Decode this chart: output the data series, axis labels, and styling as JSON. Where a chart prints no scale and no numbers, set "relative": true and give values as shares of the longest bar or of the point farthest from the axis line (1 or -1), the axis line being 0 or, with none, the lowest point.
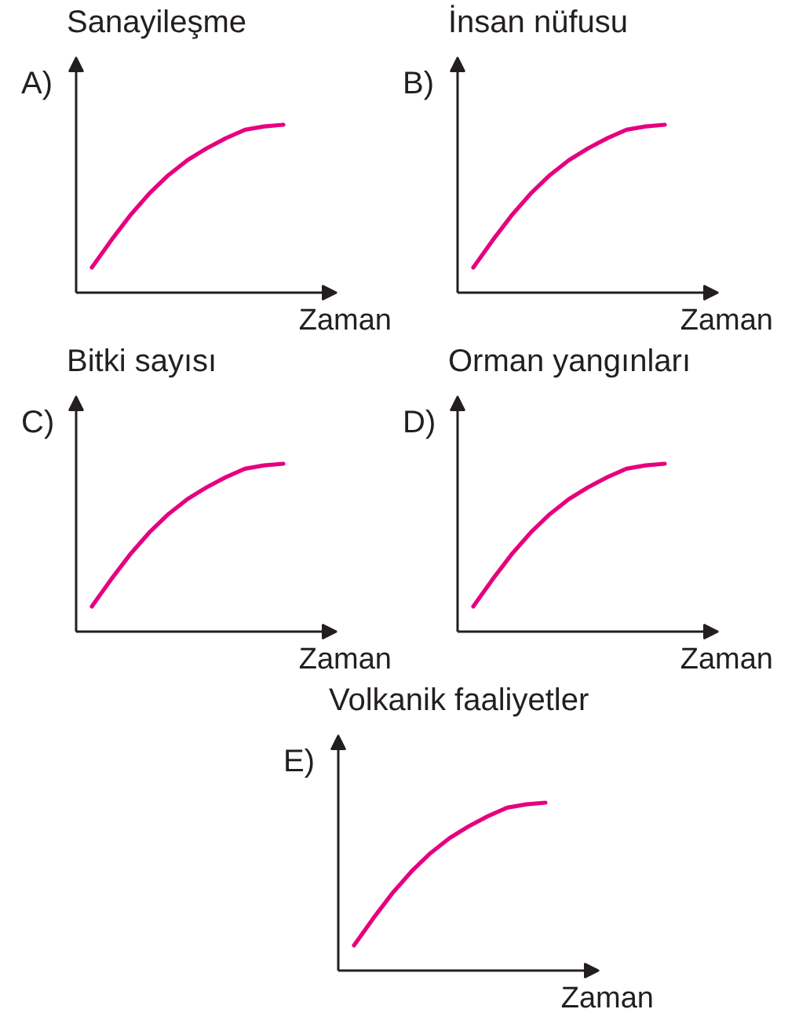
{
  "chart_data": [
    {
      "type": "line",
      "ylabel": "Sanayileşme",
      "xlabel": "Zaman",
      "annotations": [
        "A)"
      ],
      "relative": true,
      "categories": [
        null,
        null,
        null,
        null,
        null,
        null,
        null,
        null,
        null,
        null,
        null
      ],
      "series": [
        {
          "color": "#e6007e",
          "values": [
            0.15,
            0.31,
            0.46,
            0.59,
            0.7,
            0.79,
            0.86,
            0.92,
            0.97,
            0.99,
            1
          ]
        }
      ]
    },
    {
      "type": "line",
      "ylabel": "İnsan nüfusu",
      "xlabel": "Zaman",
      "annotations": [
        "B)"
      ],
      "relative": true,
      "categories": [
        null,
        null,
        null,
        null,
        null,
        null,
        null,
        null,
        null,
        null,
        null
      ],
      "series": [
        {
          "color": "#e6007e",
          "values": [
            0.15,
            0.31,
            0.46,
            0.59,
            0.7,
            0.79,
            0.86,
            0.92,
            0.97,
            0.99,
            1
          ]
        }
      ]
    },
    {
      "type": "line",
      "ylabel": "Bitki sayısı",
      "xlabel": "Zaman",
      "annotations": [
        "C)"
      ],
      "relative": true,
      "categories": [
        null,
        null,
        null,
        null,
        null,
        null,
        null,
        null,
        null,
        null,
        null
      ],
      "series": [
        {
          "color": "#e6007e",
          "values": [
            0.15,
            0.31,
            0.46,
            0.59,
            0.7,
            0.79,
            0.86,
            0.92,
            0.97,
            0.99,
            1
          ]
        }
      ]
    },
    {
      "type": "line",
      "ylabel": "Orman yangınları",
      "xlabel": "Zaman",
      "annotations": [
        "D)"
      ],
      "relative": true,
      "categories": [
        null,
        null,
        null,
        null,
        null,
        null,
        null,
        null,
        null,
        null,
        null
      ],
      "series": [
        {
          "color": "#e6007e",
          "values": [
            0.15,
            0.31,
            0.46,
            0.59,
            0.7,
            0.79,
            0.86,
            0.92,
            0.97,
            0.99,
            1
          ]
        }
      ]
    },
    {
      "type": "line",
      "ylabel": "Volkanik faaliyetler",
      "xlabel": "Zaman",
      "annotations": [
        "E)"
      ],
      "relative": true,
      "categories": [
        null,
        null,
        null,
        null,
        null,
        null,
        null,
        null,
        null,
        null,
        null
      ],
      "series": [
        {
          "color": "#e6007e",
          "values": [
            0.15,
            0.31,
            0.46,
            0.59,
            0.7,
            0.79,
            0.86,
            0.92,
            0.97,
            0.99,
            1
          ]
        }
      ]
    }
  ]
}
